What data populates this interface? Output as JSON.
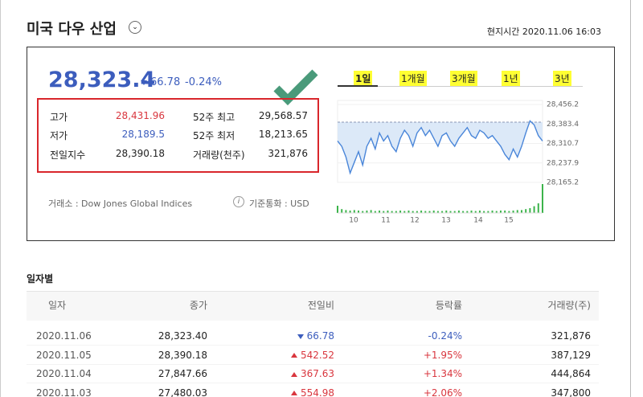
{
  "header": {
    "title": "미국 다우 산업",
    "time": "현지시간 2020.11.06 16:03"
  },
  "quote": {
    "price": "28,323.4",
    "change": "66.78",
    "rate": "-0.24%"
  },
  "stats": [
    [
      "고가",
      "28,431.96",
      "52주 최고",
      "29,568.57"
    ],
    [
      "저가",
      "28,189.5",
      "52주 최저",
      "18,213.65"
    ],
    [
      "전일지수",
      "28,390.18",
      "거래량(천주)",
      "321,876"
    ]
  ],
  "footer": {
    "exchange": "거래소 : Dow Jones Global Indices",
    "currency": "기준통화 : USD"
  },
  "tabs": [
    "1일",
    "1개월",
    "3개월",
    "1년",
    "3년"
  ],
  "mini_chart": {
    "type": "line",
    "color": "#4a86d9",
    "fill": "#dce9f8",
    "volume_color": "#3cb44b",
    "ylim": [
      28165.2,
      28456.2
    ],
    "yticks": [
      {
        "value": 28456.2,
        "label": "28,456.2"
      },
      {
        "value": 28383.4,
        "label": "28,383.4"
      },
      {
        "value": 28310.7,
        "label": "28,310.7"
      },
      {
        "value": 28237.9,
        "label": "28,237.9"
      },
      {
        "value": 28165.2,
        "label": "28,165.2"
      }
    ],
    "reference": 28390.18,
    "x_labels": [
      "10",
      "11",
      "12",
      "13",
      "14",
      "15"
    ],
    "values": [
      28320,
      28300,
      28260,
      28200,
      28240,
      28280,
      28230,
      28300,
      28330,
      28290,
      28350,
      28320,
      28340,
      28300,
      28280,
      28330,
      28360,
      28340,
      28300,
      28350,
      28370,
      28340,
      28360,
      28330,
      28300,
      28340,
      28350,
      28320,
      28300,
      28330,
      28350,
      28370,
      28340,
      28330,
      28360,
      28350,
      28330,
      28340,
      28320,
      28300,
      28270,
      28250,
      28290,
      28260,
      28300,
      28350,
      28395,
      28380,
      28340,
      28320
    ],
    "volume": [
      15,
      8,
      6,
      5,
      6,
      5,
      4,
      5,
      6,
      4,
      5,
      4,
      5,
      4,
      4,
      5,
      4,
      5,
      4,
      4,
      5,
      4,
      4,
      5,
      4,
      4,
      5,
      4,
      4,
      5,
      4,
      4,
      5,
      4,
      5,
      4,
      4,
      5,
      4,
      5,
      5,
      4,
      5,
      6,
      6,
      8,
      10,
      14,
      20,
      60
    ]
  },
  "daily": {
    "title": "일자별",
    "headers": [
      "일자",
      "종가",
      "전일비",
      "등락률",
      "거래량(주)"
    ],
    "rows": [
      [
        "2020.11.06",
        "28,323.40",
        "66.78",
        "-0.24%",
        "321,876"
      ],
      [
        "2020.11.05",
        "28,390.18",
        "542.52",
        "+1.95%",
        "387,129"
      ],
      [
        "2020.11.04",
        "27,847.66",
        "367.63",
        "+1.34%",
        "444,864"
      ],
      [
        "2020.11.03",
        "27,480.03",
        "554.98",
        "+2.06%",
        "347,800"
      ]
    ]
  }
}
